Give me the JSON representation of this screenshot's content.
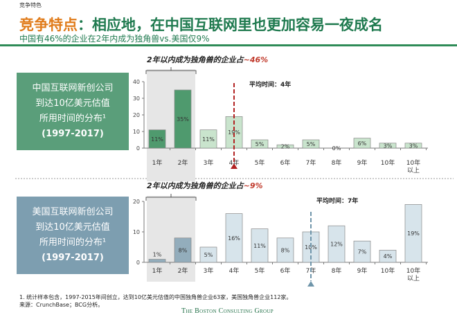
{
  "header": {
    "section": "竞争特色",
    "title_highlight": "竞争特点",
    "title_rest": "：相应地，在中国互联网里也更加容易一夜成名",
    "subtitle": "中国有46%的企业在2年内成为独角兽vs.美国仅9%"
  },
  "boxes": [
    {
      "lines": [
        "中国互联网新创公司",
        "到达10亿美元估值",
        "所用时间的分布¹",
        "(1997-2017)"
      ]
    },
    {
      "lines": [
        "美国互联网新创公司",
        "到达10亿美元估值",
        "所用时间的分布¹",
        "(1997-2017)"
      ]
    }
  ],
  "footnotes": {
    "note": "1. 统计样本包含，1997-2015年间创立，达到10亿美元估值的中国独角兽企业63家，美国独角兽企业112家。",
    "source": "来源：CrunchBase；BCG分析。",
    "logo": "The Boston Consulting Group"
  },
  "chart_data": [
    {
      "type": "bar",
      "callout_prefix": "2年以内成为独角兽的企业占",
      "callout_value": "~46%",
      "avg_label": "平均时间：4年",
      "avg_category": "4年",
      "categories": [
        "1年",
        "2年",
        "3年",
        "4年",
        "5年",
        "6年",
        "7年",
        "8年",
        "9年",
        "10年",
        "10年以上"
      ],
      "values": [
        11,
        35,
        11,
        19,
        5,
        2,
        5,
        0,
        6,
        3,
        3
      ],
      "labels": [
        "11%",
        "35%",
        "11%",
        "19%",
        "5%",
        "2%",
        "5%",
        "0%",
        "6%",
        "3%",
        "3%"
      ],
      "yticks": [
        0,
        10,
        20,
        30,
        40
      ],
      "ylim": [
        0,
        40
      ],
      "highlight_categories": [
        "1年",
        "2年"
      ],
      "colors": {
        "highlight": "#4f9a6e",
        "normal": "#c9e4cd",
        "avg_line": "#b22222",
        "callout": "#c0392b"
      }
    },
    {
      "type": "bar",
      "callout_prefix": "2年以内成为独角兽的企业占",
      "callout_value": "~9%",
      "avg_label": "平均时间：7年",
      "avg_category": "7年",
      "categories": [
        "1年",
        "2年",
        "3年",
        "4年",
        "5年",
        "6年",
        "7年",
        "8年",
        "9年",
        "10年",
        "10年以上"
      ],
      "values": [
        1,
        8,
        5,
        16,
        11,
        8,
        10,
        12,
        7,
        4,
        19
      ],
      "labels": [
        "1%",
        "8%",
        "5%",
        "16%",
        "11%",
        "8%",
        "10%",
        "12%",
        "7%",
        "4%",
        "19%"
      ],
      "yticks": [
        0,
        10,
        20
      ],
      "ylim": [
        0,
        20
      ],
      "highlight_categories": [
        "1年",
        "2年"
      ],
      "colors": {
        "highlight": "#93adbc",
        "normal": "#d7e4eb",
        "avg_line": "#6f95aa",
        "callout": "#c0392b"
      }
    }
  ]
}
